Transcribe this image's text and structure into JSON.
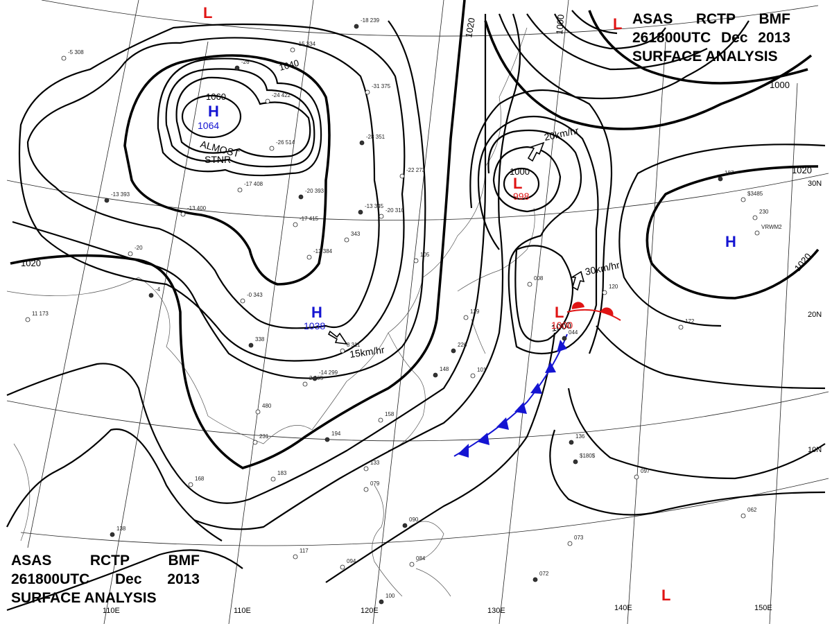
{
  "title": {
    "line1": [
      "ASAS",
      "RCTP",
      "BMF"
    ],
    "line2": [
      "261800UTC",
      "Dec",
      "2013"
    ],
    "line3": "SURFACE ANALYSIS"
  },
  "isobar_labels": [
    "1060",
    "1040",
    "1020",
    "1020",
    "1020",
    "1020",
    "1000",
    "1000",
    "1000",
    "1000",
    "1020"
  ],
  "pressure_centers": [
    {
      "type": "H",
      "value": "1064",
      "color": "#1414d2"
    },
    {
      "type": "H",
      "value": "1038",
      "color": "#1414d2"
    },
    {
      "type": "H",
      "value": "",
      "color": "#1414d2"
    },
    {
      "type": "L",
      "value": "998",
      "color": "#e01414"
    },
    {
      "type": "L",
      "value": "1000",
      "color": "#e01414"
    },
    {
      "type": "L",
      "value": "",
      "color": "#e01414"
    },
    {
      "type": "L",
      "value": "",
      "color": "#e01414"
    },
    {
      "type": "L",
      "value": "",
      "color": "#e01414"
    }
  ],
  "annotations": {
    "almost": "ALMOST",
    "stnr": "STNR",
    "motion_1": "20km/hr",
    "motion_2": "30km/hr",
    "motion_3": "15km/hr"
  },
  "longitude_labels": [
    "110E",
    "110E",
    "120E",
    "130E",
    "140E",
    "150E"
  ],
  "latitude_labels": [
    "30N",
    "20N",
    "10N"
  ],
  "stations": [
    "-18 239",
    "-15 334",
    "-5 308",
    "-26",
    "-24 422",
    "-31 375",
    "-28 351",
    "-26 514",
    "-17 408",
    "-20 393",
    "-13 400",
    "-17 415",
    "-13 345",
    "-20 310",
    "-22 273",
    "-13 393",
    "-20",
    "-13 384",
    "-4",
    "343",
    "-0 343",
    "-14 299",
    "2 305",
    "8 311",
    "338",
    "480",
    "231",
    "194",
    "183",
    "168",
    "138",
    "117",
    "094",
    "100",
    "133",
    "079",
    "090",
    "084",
    "158",
    "148",
    "101",
    "129",
    "226",
    "105",
    "008",
    "044",
    "120",
    "172",
    "136",
    "097",
    "073",
    "072",
    "062",
    "230",
    "187",
    "$3485",
    "VRWM2",
    "$180$",
    "11 173"
  ],
  "colors": {
    "high": "#1414d2",
    "low": "#e01414",
    "cold_front": "#1414d2",
    "warm_front": "#e01414",
    "isobar": "#000000",
    "grid": "#222222"
  }
}
